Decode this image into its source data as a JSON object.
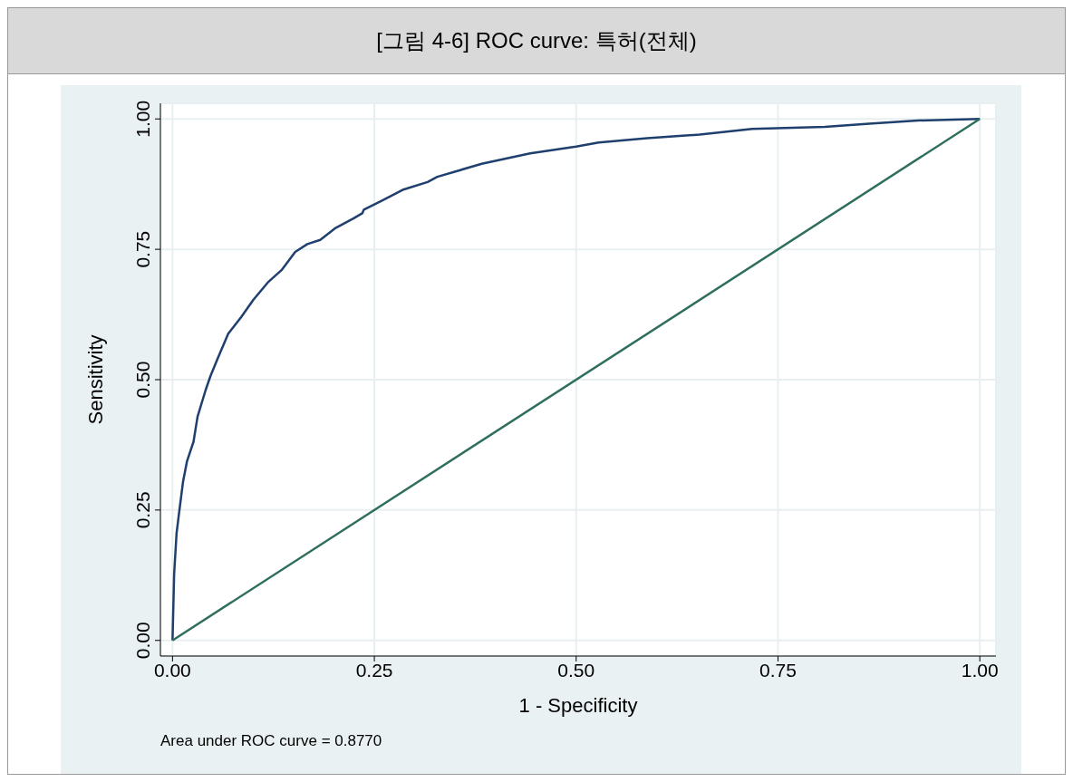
{
  "chart_data": {
    "type": "line",
    "title": "[그림 4-6] ROC curve: 특허(전체)",
    "xlabel": "1 - Specificity",
    "ylabel": "Sensitivity",
    "annotations": [
      "Area under ROC curve = 0.8770"
    ],
    "xlim": [
      -0.015,
      1.02
    ],
    "ylim": [
      -0.03,
      1.03
    ],
    "xticks": [
      {
        "value": 0,
        "label": "0.00"
      },
      {
        "value": 0.25,
        "label": "0.25"
      },
      {
        "value": 0.5,
        "label": "0.50"
      },
      {
        "value": 0.75,
        "label": "0.75"
      },
      {
        "value": 1,
        "label": "1.00"
      }
    ],
    "yticks": [
      {
        "value": 0,
        "label": "0.00"
      },
      {
        "value": 0.25,
        "label": "0.25"
      },
      {
        "value": 0.5,
        "label": "0.50"
      },
      {
        "value": 0.75,
        "label": "0.75"
      },
      {
        "value": 1,
        "label": "1.00"
      }
    ],
    "grid": true,
    "marker": "none",
    "line_style": "solid",
    "series": [
      {
        "color": "#1f3f6e",
        "x": [
          0,
          0.002,
          0.005,
          0.008,
          0.013,
          0.018,
          0.026,
          0.031,
          0.041,
          0.047,
          0.056,
          0.069,
          0.085,
          0.1,
          0.119,
          0.135,
          0.152,
          0.167,
          0.183,
          0.202,
          0.224,
          0.235,
          0.237,
          0.259,
          0.285,
          0.316,
          0.328,
          0.383,
          0.443,
          0.5,
          0.528,
          0.588,
          0.653,
          0.718,
          0.808,
          0.863,
          0.923,
          1.0
        ],
        "values": [
          0,
          0.127,
          0.205,
          0.243,
          0.304,
          0.344,
          0.381,
          0.429,
          0.48,
          0.507,
          0.541,
          0.588,
          0.62,
          0.653,
          0.688,
          0.71,
          0.745,
          0.76,
          0.768,
          0.791,
          0.809,
          0.819,
          0.826,
          0.843,
          0.864,
          0.879,
          0.889,
          0.914,
          0.934,
          0.947,
          0.955,
          0.963,
          0.97,
          0.981,
          0.985,
          0.991,
          0.997,
          1.0
        ]
      },
      {
        "color": "#2e6e5e",
        "x": [
          0,
          1
        ],
        "values": [
          0,
          1
        ]
      }
    ]
  }
}
